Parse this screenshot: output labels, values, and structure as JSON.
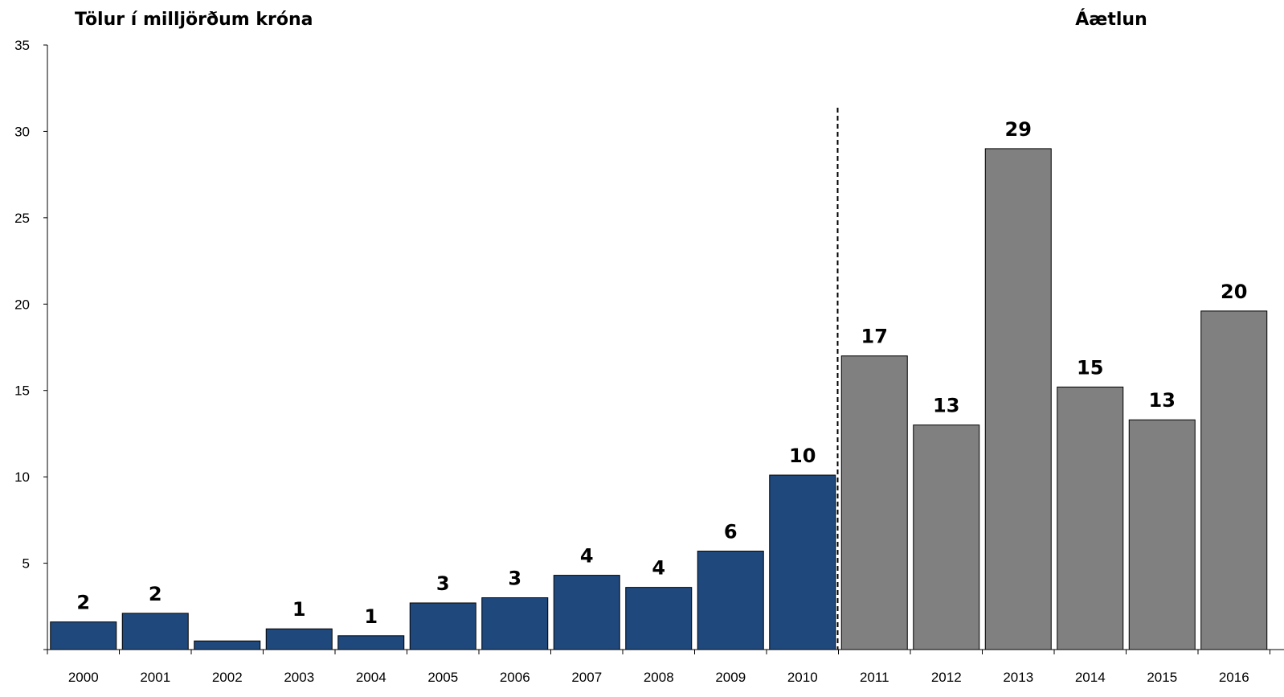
{
  "chart_data": {
    "type": "bar",
    "title": "Tölur í milljörðum króna",
    "forecast_label": "Áætlun",
    "categories": [
      "2000",
      "2001",
      "2002",
      "2003",
      "2004",
      "2005",
      "2006",
      "2007",
      "2008",
      "2009",
      "2010",
      "2011",
      "2012",
      "2013",
      "2014",
      "2015",
      "2016"
    ],
    "values": [
      1.6,
      2.1,
      0.5,
      1.2,
      0.8,
      2.7,
      3.0,
      4.3,
      3.6,
      5.7,
      10.1,
      17.0,
      13.0,
      29.0,
      15.2,
      13.3,
      19.6
    ],
    "data_labels": [
      "2",
      "2",
      "",
      "1",
      "1",
      "3",
      "3",
      "4",
      "4",
      "6",
      "10",
      "17",
      "13",
      "29",
      "15",
      "13",
      "20"
    ],
    "forecast_start_index": 11,
    "ylim": [
      0,
      35
    ],
    "yticks": [
      "35",
      "30",
      "25",
      "20",
      "15",
      "10",
      "5"
    ],
    "grid": false,
    "colors": {
      "actual": "#1F497D",
      "forecast": "#808080"
    }
  }
}
